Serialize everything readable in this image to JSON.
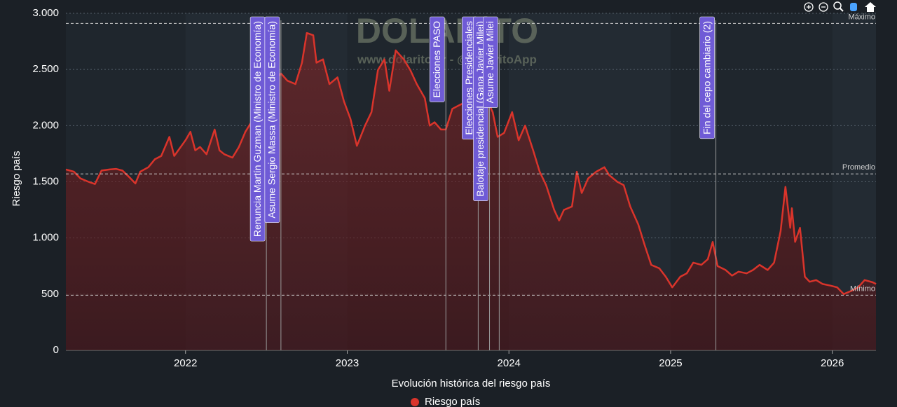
{
  "chart_data": {
    "type": "area",
    "watermark": "DOLARITO",
    "watermark_subtitle": "www.dolarito.ar - @DolaritoApp",
    "x_label": "Evolución histórica del riesgo país",
    "y_label": "Riesgo país",
    "xlim": [
      2021.26,
      2026.27
    ],
    "xticks": [
      2022,
      2023,
      2024,
      2025,
      2026
    ],
    "ylim": [
      0,
      3000
    ],
    "yticks": [
      0,
      500,
      {
        "value": 1000,
        "label": "1.000"
      },
      {
        "value": 1500,
        "label": "1.500"
      },
      {
        "value": 2000,
        "label": "2.000"
      },
      {
        "value": 2500,
        "label": "2.500"
      },
      {
        "value": 3000,
        "label": "3.000"
      }
    ],
    "grid": true,
    "legend": "bottom",
    "x": [
      2021.26,
      2021.31,
      2021.35,
      2021.4,
      2021.44,
      2021.48,
      2021.53,
      2021.57,
      2021.61,
      2021.66,
      2021.69,
      2021.72,
      2021.77,
      2021.81,
      2021.85,
      2021.9,
      2021.93,
      2021.97,
      2022.0,
      2022.03,
      2022.06,
      2022.09,
      2022.13,
      2022.18,
      2022.21,
      2022.24,
      2022.29,
      2022.33,
      2022.37,
      2022.42,
      2022.46,
      2022.5,
      2022.52,
      2022.57,
      2022.59,
      2022.63,
      2022.68,
      2022.72,
      2022.75,
      2022.79,
      2022.81,
      2022.85,
      2022.89,
      2022.94,
      2022.98,
      2023.02,
      2023.06,
      2023.11,
      2023.15,
      2023.19,
      2023.23,
      2023.26,
      2023.3,
      2023.35,
      2023.39,
      2023.43,
      2023.48,
      2023.51,
      2023.54,
      2023.58,
      2023.61,
      2023.65,
      2023.69,
      2023.74,
      2023.78,
      2023.82,
      2023.87,
      2023.9,
      2023.93,
      2023.97,
      2024.02,
      2024.06,
      2024.1,
      2024.15,
      2024.19,
      2024.23,
      2024.28,
      2024.31,
      2024.34,
      2024.39,
      2024.42,
      2024.45,
      2024.49,
      2024.54,
      2024.59,
      2024.62,
      2024.67,
      2024.71,
      2024.75,
      2024.8,
      2024.84,
      2024.88,
      2024.93,
      2024.97,
      2025.01,
      2025.06,
      2025.1,
      2025.14,
      2025.19,
      2025.23,
      2025.26,
      2025.29,
      2025.34,
      2025.38,
      2025.42,
      2025.47,
      2025.51,
      2025.55,
      2025.6,
      2025.64,
      2025.68,
      2025.71,
      2025.74,
      2025.75,
      2025.77,
      2025.8,
      2025.83,
      2025.86,
      2025.9,
      2025.94,
      2025.99,
      2026.03,
      2026.07,
      2026.12,
      2026.16,
      2026.2,
      2026.25,
      2026.27
    ],
    "series": [
      {
        "name": "Riesgo país",
        "color": "#d9342b",
        "values": [
          1610,
          1590,
          1530,
          1500,
          1480,
          1600,
          1610,
          1615,
          1600,
          1530,
          1485,
          1590,
          1630,
          1700,
          1730,
          1900,
          1730,
          1810,
          1870,
          1945,
          1780,
          1810,
          1745,
          1965,
          1780,
          1745,
          1715,
          1810,
          1945,
          2060,
          2120,
          2245,
          2370,
          2430,
          2465,
          2400,
          2370,
          2560,
          2825,
          2805,
          2560,
          2590,
          2370,
          2430,
          2215,
          2060,
          1820,
          2000,
          2120,
          2495,
          2590,
          2310,
          2670,
          2590,
          2495,
          2370,
          2245,
          2000,
          2030,
          1965,
          1965,
          2150,
          2180,
          2215,
          2280,
          2245,
          2215,
          2120,
          1900,
          1935,
          2120,
          1870,
          2000,
          1780,
          1590,
          1470,
          1250,
          1155,
          1250,
          1280,
          1590,
          1400,
          1530,
          1590,
          1630,
          1560,
          1500,
          1470,
          1280,
          1120,
          935,
          760,
          730,
          655,
          560,
          655,
          685,
          780,
          760,
          810,
          965,
          750,
          715,
          665,
          700,
          685,
          715,
          760,
          715,
          780,
          1060,
          1455,
          1090,
          1265,
          965,
          1090,
          655,
          610,
          625,
          590,
          575,
          560,
          500,
          530,
          560,
          625,
          605,
          590
        ]
      }
    ],
    "reference_lines": [
      {
        "label": "Máximo",
        "value": 2910
      },
      {
        "label": "Promedio",
        "value": 1570
      },
      {
        "label": "Mínimo",
        "value": 490
      }
    ],
    "annotations": [
      {
        "x": 2022.5,
        "text": "Renuncia Martín Guzman (Ministro de Economía)"
      },
      {
        "x": 2022.59,
        "text": "Asume Sergio Massa (Ministro de Economía)"
      },
      {
        "x": 2023.61,
        "text": "Elecciones PASO"
      },
      {
        "x": 2023.81,
        "text": "Elecciones Presidenciales"
      },
      {
        "x": 2023.88,
        "text": "Balotaje presidencial (Gana Javier Milei)"
      },
      {
        "x": 2023.94,
        "text": "Asume Javier Milei"
      },
      {
        "x": 2025.28,
        "text": "Fin del cepo cambiario (2)"
      }
    ]
  }
}
